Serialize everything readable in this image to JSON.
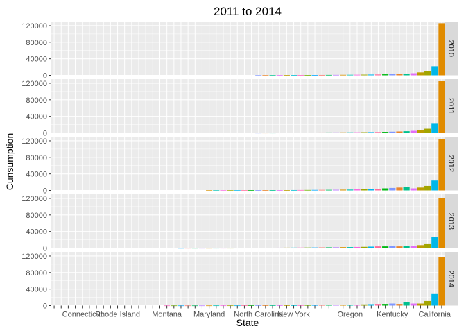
{
  "chart_data": {
    "type": "bar",
    "title": "2011 to 2014",
    "xlabel": "State",
    "ylabel": "Cunsumption",
    "ylim": [
      0,
      130000
    ],
    "y_ticks": [
      "0",
      "40000",
      "80000",
      "120000"
    ],
    "facet_labels": [
      "2010",
      "2011",
      "2012",
      "2013",
      "2014"
    ],
    "x_tick_labels": [
      "Connecticut",
      "Rhode Island",
      "Montana",
      "Maryland",
      "North Carolina",
      "New York",
      "Oregon",
      "Kentucky",
      "California"
    ],
    "x_tick_label_positions": [
      4,
      9,
      16,
      22,
      29,
      34,
      42,
      48,
      54
    ],
    "n_states": 56,
    "grid": true,
    "panels": [
      {
        "year": "2010",
        "values": [
          0,
          0,
          0,
          0,
          0,
          0,
          0,
          0,
          0,
          0,
          0,
          0,
          0,
          0,
          0,
          0,
          0,
          0,
          0,
          0,
          0,
          0,
          0,
          0,
          0,
          0,
          0,
          0,
          0,
          300,
          400,
          400,
          500,
          600,
          600,
          700,
          700,
          800,
          900,
          1000,
          1100,
          1200,
          1300,
          1400,
          1600,
          1800,
          2000,
          2400,
          2900,
          3400,
          4000,
          5000,
          7000,
          10000,
          22000,
          126000
        ]
      },
      {
        "year": "2011",
        "values": [
          0,
          0,
          0,
          0,
          0,
          0,
          0,
          0,
          0,
          0,
          0,
          0,
          0,
          0,
          0,
          0,
          0,
          0,
          0,
          0,
          0,
          0,
          0,
          0,
          0,
          0,
          0,
          0,
          0,
          300,
          400,
          400,
          500,
          600,
          600,
          700,
          700,
          800,
          900,
          1000,
          1100,
          1200,
          1300,
          1400,
          1600,
          1800,
          2000,
          2400,
          2900,
          3400,
          4000,
          5000,
          7000,
          10000,
          22000,
          125000
        ]
      },
      {
        "year": "2012",
        "values": [
          0,
          0,
          0,
          0,
          0,
          0,
          0,
          0,
          0,
          0,
          0,
          0,
          0,
          0,
          0,
          0,
          0,
          0,
          0,
          0,
          0,
          0,
          300,
          300,
          300,
          400,
          400,
          400,
          500,
          600,
          600,
          700,
          700,
          800,
          900,
          1000,
          1100,
          1200,
          1300,
          1400,
          1600,
          1800,
          2000,
          2400,
          2900,
          3400,
          4000,
          5000,
          6000,
          7000,
          8000,
          5000,
          7000,
          11000,
          24000,
          124000
        ]
      },
      {
        "year": "2013",
        "values": [
          0,
          0,
          0,
          0,
          0,
          0,
          0,
          0,
          0,
          0,
          0,
          0,
          0,
          0,
          0,
          0,
          0,
          0,
          200,
          300,
          300,
          300,
          300,
          400,
          400,
          400,
          500,
          600,
          600,
          700,
          700,
          800,
          900,
          1000,
          1100,
          1200,
          1300,
          1400,
          1600,
          1800,
          2000,
          2200,
          2400,
          2600,
          2900,
          3400,
          4000,
          4000,
          5000,
          4000,
          5000,
          5000,
          7000,
          11000,
          26000,
          120000
        ]
      },
      {
        "year": "2014",
        "values": [
          0,
          0,
          0,
          0,
          0,
          0,
          0,
          0,
          0,
          0,
          0,
          0,
          0,
          0,
          0,
          0,
          300,
          300,
          300,
          300,
          300,
          300,
          300,
          400,
          400,
          400,
          400,
          500,
          500,
          600,
          600,
          700,
          700,
          800,
          900,
          1000,
          1100,
          1200,
          1300,
          1400,
          1600,
          1800,
          2000,
          2400,
          2900,
          3400,
          4000,
          4000,
          5000,
          4000,
          8000,
          5000,
          5000,
          11000,
          28000,
          117000
        ]
      }
    ],
    "palette": [
      "#F8766D",
      "#E9842C",
      "#D69100",
      "#BC9D00",
      "#9CA700",
      "#6FB000",
      "#00B813",
      "#00BD61",
      "#00C08E",
      "#00C0B4",
      "#00BDD4",
      "#00B5EE",
      "#00A7FF",
      "#7F96FF",
      "#BC81FF",
      "#E26EF7",
      "#F863DF",
      "#FF62BF",
      "#FF6A9A"
    ],
    "colors": {
      "panel_bg": "#ebebeb",
      "grid": "#ffffff",
      "strip_bg": "#d9d9d9",
      "california": "#E08B00",
      "second": "#00B7E8",
      "third": "#A3A500"
    }
  }
}
